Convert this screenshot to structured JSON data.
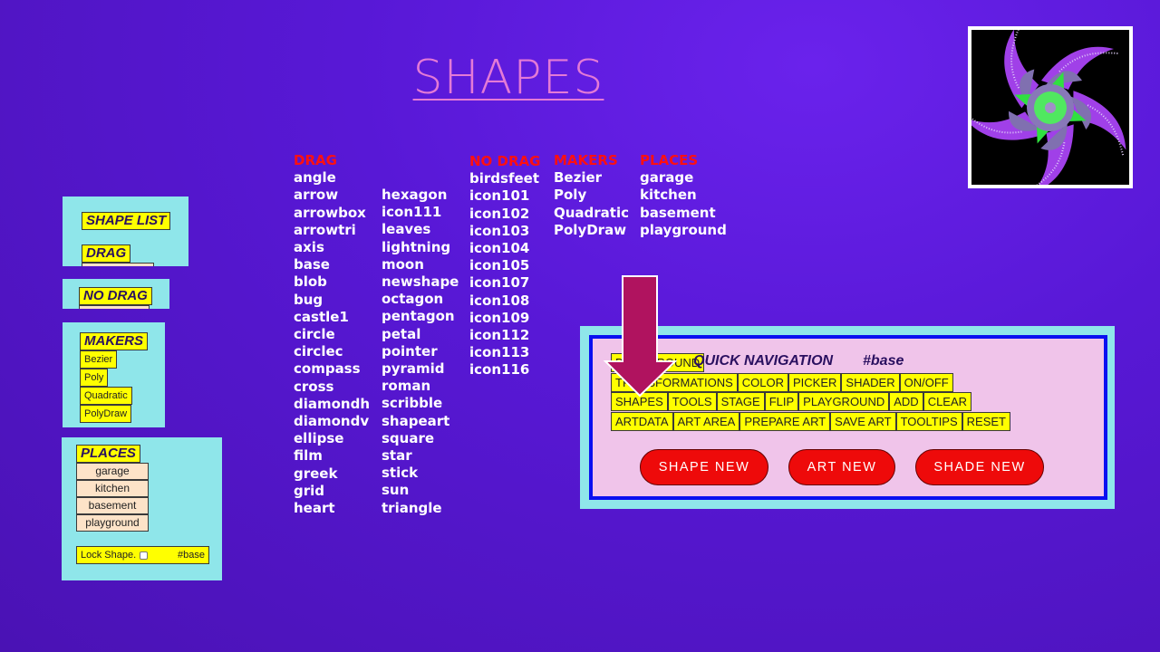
{
  "title": "SHAPES",
  "lists": {
    "drag": {
      "heading": "DRAG",
      "col1": [
        "angle",
        "arrow",
        "arrowbox",
        "arrowtri",
        "axis",
        "base",
        "blob",
        "bug",
        "castle1",
        "circle",
        "circlec",
        "compass",
        "cross",
        "diamondh",
        "diamondv",
        "ellipse",
        "film",
        "greek",
        "grid",
        "heart"
      ],
      "col2": [
        "hexagon",
        "icon111",
        "leaves",
        "lightning",
        "moon",
        "newshape",
        "octagon",
        "pentagon",
        "petal",
        "pointer",
        "pyramid",
        "roman",
        "scribble",
        "shapeart",
        "square",
        "star",
        "stick",
        "sun",
        "triangle"
      ]
    },
    "no_drag": {
      "heading": "NO DRAG",
      "items": [
        "birdsfeet",
        "icon101",
        "icon102",
        "icon103",
        "icon104",
        "icon105",
        "icon107",
        "icon108",
        "icon109",
        "icon112",
        "icon113",
        "icon116"
      ]
    },
    "makers": {
      "heading": "MAKERS",
      "items": [
        "Bezier",
        "Poly",
        "Quadratic",
        "PolyDraw"
      ]
    },
    "places": {
      "heading": "PLACES",
      "items": [
        "garage",
        "kitchen",
        "basement",
        "playground"
      ]
    }
  },
  "sidebar": {
    "shape_list": "SHAPE LIST",
    "drag": "DRAG",
    "no_drag": "NO DRAG",
    "makers": "MAKERS",
    "maker_items": [
      "Bezier",
      "Poly",
      "Quadratic",
      "PolyDraw"
    ],
    "places": "PLACES",
    "place_items": [
      "garage",
      "kitchen",
      "basement",
      "playground"
    ],
    "lock_label": "Lock Shape.",
    "lock_checked": false,
    "lock_hash": "#base"
  },
  "quick_nav": {
    "title": "QUICK NAVIGATION",
    "hash": "#base",
    "rows": [
      [
        "BACKGROUND"
      ],
      [
        "TRANSFORMATIONS",
        "COLOR",
        "PICKER",
        "SHADER",
        "ON/OFF"
      ],
      [
        "SHAPES",
        "TOOLS",
        "STAGE",
        "FLIP",
        "PLAYGROUND",
        "ADD",
        "CLEAR"
      ],
      [
        "ARTDATA",
        "ART AREA",
        "PREPARE ART",
        "SAVE ART",
        "TOOLTIPS",
        "RESET"
      ]
    ],
    "buttons": [
      "SHAPE NEW",
      "ART NEW",
      "SHADE NEW"
    ]
  },
  "colors": {
    "background": "#5818d6",
    "title": "#e47ad6",
    "heading": "#ff1010",
    "panel": "#8fe6ea",
    "nav_bg": "#f0c4ea",
    "nav_border": "#0a10f0",
    "button_yellow": "#ffff00",
    "button_red": "#ee0a0a",
    "arrow": "#b0135f"
  },
  "icons": {
    "arrow": "down-arrow-icon",
    "logo": "spiral-flower-logo"
  }
}
